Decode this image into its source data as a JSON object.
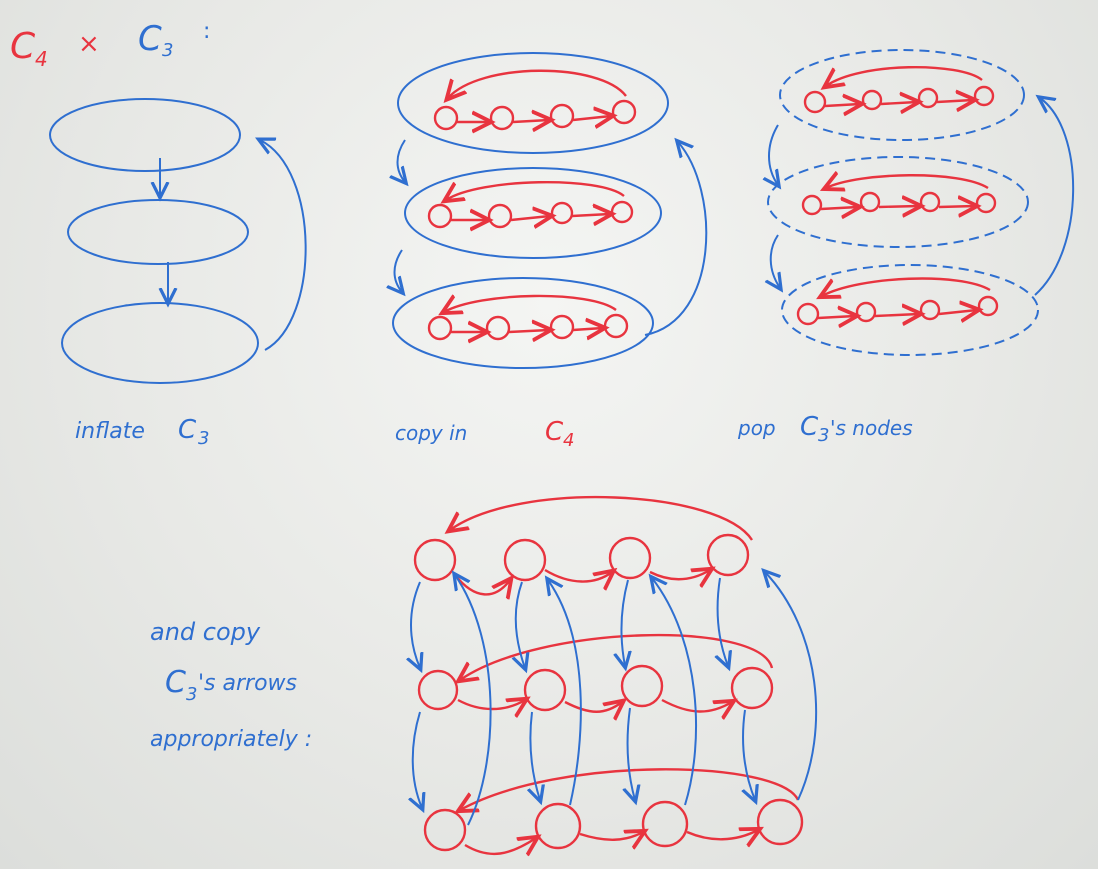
{
  "heading": {
    "left": "C",
    "left_sub": "4",
    "op": "×",
    "right": "C",
    "right_sub": "3",
    "colon": ":"
  },
  "captions": {
    "inflate": "inflate",
    "inflate_c": "C",
    "inflate_sub": "3",
    "copy": "copy in",
    "copy_c": "C",
    "copy_sub": "4",
    "pop": "pop",
    "pop_c": "C",
    "pop_sub": "3",
    "pop_rest": "'s nodes",
    "arrows_line1": "and copy",
    "arrows_c": "C",
    "arrows_sub": "3",
    "arrows_line2_rest": "'s arrows",
    "arrows_line3": "appropriately :"
  },
  "colors": {
    "red": "#e8343f",
    "blue": "#2f6fd0"
  }
}
